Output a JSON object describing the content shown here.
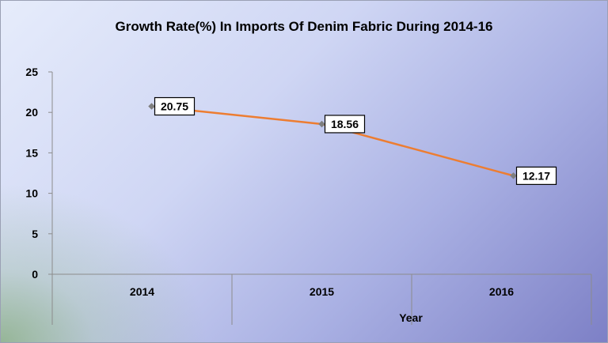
{
  "chart_data": {
    "type": "line",
    "title": "Growth Rate(%) In Imports Of Denim Fabric During 2014-16",
    "xlabel": "Year",
    "ylabel": "",
    "categories": [
      "2014",
      "2015",
      "2016"
    ],
    "series": [
      {
        "values": [
          20.75,
          18.56,
          12.17
        ]
      }
    ],
    "ylim": [
      0,
      25
    ],
    "yticks": [
      0,
      5,
      10,
      15,
      20,
      25
    ],
    "grid": false,
    "legend": "none",
    "line_color": "#ed7d31",
    "marker_color": "#7f7f7f"
  }
}
